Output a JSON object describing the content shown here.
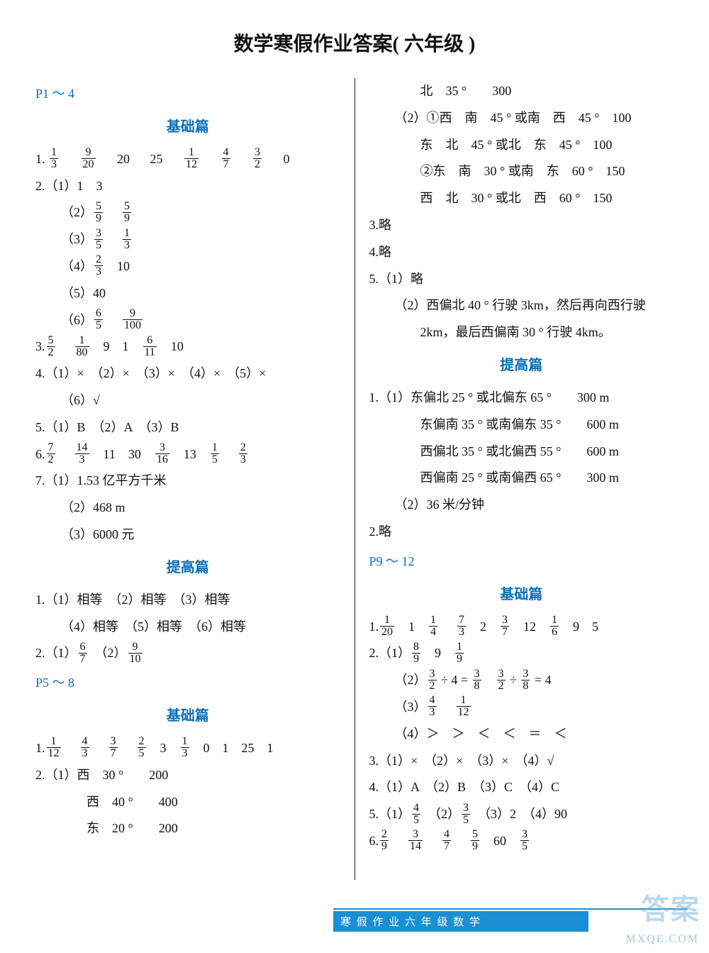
{
  "title": "数学寒假作业答案( 六年级 )",
  "colors": {
    "accent": "#0a6fb8",
    "footer": "#1a8fd4",
    "text": "#111111"
  },
  "left": {
    "pr1": "P1 ～ 4",
    "sh1": "基础篇",
    "l1_pre": "1.",
    "l1_vals": [
      "1/3",
      "9/20",
      "20",
      "25",
      "1/12",
      "4/7",
      "3/2",
      "0"
    ],
    "l2a": "2.（1）1　3",
    "l2b_pre": "（2）",
    "l2b_f": [
      "5/9",
      "5/9"
    ],
    "l2c_pre": "（3）",
    "l2c_f": [
      "3/5",
      "1/3"
    ],
    "l2d_pre": "（4）",
    "l2d_f": [
      "2/3"
    ],
    "l2d_post": "　10",
    "l2e": "（5）40",
    "l2f_pre": "（6）",
    "l2f_f": [
      "6/5",
      "9/100"
    ],
    "l3_pre": "3.",
    "l3_f": [
      "5/2",
      "1/80"
    ],
    "l3_mid": "　9　1　",
    "l3_f2": [
      "6/11"
    ],
    "l3_post": "　10",
    "l4": "4.（1）×　（2）×　（3）×　（4）×　（5）×",
    "l4b": "（6）√",
    "l5": "5.（1）B　（2）A　（3）B",
    "l6_pre": "6.",
    "l6_f": [
      "7/2",
      "14/3"
    ],
    "l6_mid": "　11　30　",
    "l6_f2": [
      "3/16"
    ],
    "l6_mid2": "　13　",
    "l6_f3": [
      "1/5",
      "2/3"
    ],
    "l7a": "7.（1）1.53 亿平方千米",
    "l7b": "（2）468 m",
    "l7c": "（3）6000 元",
    "sh2": "提高篇",
    "l8": "1.（1）相等　（2）相等　（3）相等",
    "l8b": "（4）相等　（5）相等　（6）相等",
    "l9_pre": "2.（1）",
    "l9_f": [
      "6/7"
    ],
    "l9_mid": "　（2）",
    "l9_f2": [
      "9/10"
    ],
    "pr2": "P5 ～ 8",
    "sh3": "基础篇",
    "l10_pre": "1.",
    "l10_f": [
      "1/12",
      "4/3",
      "3/7",
      "2/5"
    ],
    "l10_mid": "　3　",
    "l10_f2": [
      "1/3"
    ],
    "l10_post": "　0　1　25　1",
    "l11a": "2.（1）西　30 °　　200",
    "l11b": "西　40 °　　400",
    "l11c": "东　20 °　　200"
  },
  "right": {
    "r1": "北　35 °　　300",
    "r2a": "（2）①西　南　45 ° 或南　西　45 °　100",
    "r2b": "东　北　45 ° 或北　东　45 °　100",
    "r2c": "②东　南　30 ° 或南　东　60 °　150",
    "r2d": "西　北　30 ° 或北　西　60 °　150",
    "r3": "3.略",
    "r4": "4.略",
    "r5a": "5.（1）略",
    "r5b": "（2）西偏北 40 ° 行驶 3km，然后再向西行驶",
    "r5c": "2km，最后西偏南 30 ° 行驶 4km。",
    "sh1": "提高篇",
    "r6a": "1.（1）东偏北 25 ° 或北偏东 65 °　　300 m",
    "r6b": "东偏南 35 ° 或南偏东 35 °　　600 m",
    "r6c": "西偏北 35 ° 或北偏西 55 °　　600 m",
    "r6d": "西偏南 25 ° 或南偏西 65 °　　300 m",
    "r6e": "（2）36 米/分钟",
    "r7": "2.略",
    "pr1": "P9 ～ 12",
    "sh2": "基础篇",
    "r8_pre": "1.",
    "r8_f": [
      "1/20"
    ],
    "r8_m1": "　1　",
    "r8_f2": [
      "1/4",
      "7/3"
    ],
    "r8_m2": "　2　",
    "r8_f3": [
      "3/7"
    ],
    "r8_m3": "　12　",
    "r8_f4": [
      "1/6"
    ],
    "r8_post": "　9　5",
    "r9a_pre": "2.（1）",
    "r9a_f": [
      "8/9"
    ],
    "r9a_m": "　9　",
    "r9a_f2": [
      "1/9"
    ],
    "r9b_pre": "（2）",
    "r9b_f": [
      "3/2"
    ],
    "r9b_m1": " ÷ 4 = ",
    "r9b_f2": [
      "3/8"
    ],
    "r9b_m2": "　",
    "r9b_f3": [
      "3/2"
    ],
    "r9b_m3": " ÷ ",
    "r9b_f4": [
      "3/8"
    ],
    "r9b_post": " = 4",
    "r9c_pre": "（3）",
    "r9c_f": [
      "4/3",
      "1/12"
    ],
    "r9d": "（4）＞　＞　＜　＜　＝　＜",
    "r10": "3.（1）×　（2）×　（3）×　（4）√",
    "r11": "4.（1）A　（2）B　（3）C　（4）C",
    "r12_pre": "5.（1）",
    "r12_f": [
      "4/5"
    ],
    "r12_m1": "　（2）",
    "r12_f2": [
      "3/5"
    ],
    "r12_post": "　（3）2　（4）90",
    "r13_pre": "6.",
    "r13_f": [
      "2/9",
      "3/14",
      "4/7",
      "5/9"
    ],
    "r13_m": "　60　",
    "r13_f2": [
      "3/5"
    ]
  },
  "footer": "寒 假 作 业 六 年 级 数 学",
  "watermark1": "答案",
  "watermark2": "MXQE.COM"
}
